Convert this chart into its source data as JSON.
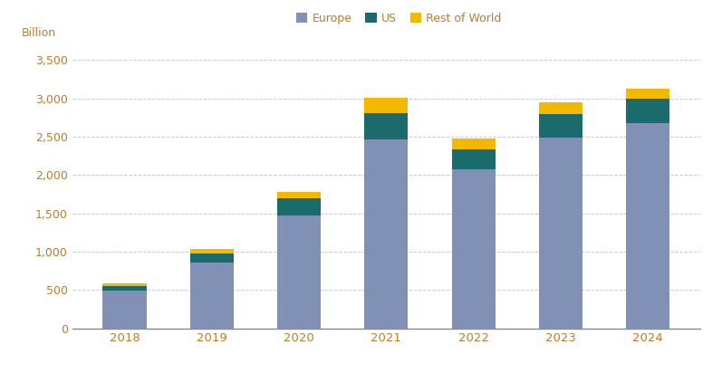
{
  "years": [
    "2018",
    "2019",
    "2020",
    "2021",
    "2022",
    "2023",
    "2024"
  ],
  "europe": [
    490,
    860,
    1470,
    2470,
    2070,
    2490,
    2680
  ],
  "us": [
    65,
    120,
    230,
    340,
    270,
    310,
    320
  ],
  "rest_of_world": [
    30,
    55,
    80,
    200,
    140,
    145,
    130
  ],
  "europe_color": "#8091b5",
  "us_color": "#1a6b6b",
  "row_color": "#f5b800",
  "background_color": "#ffffff",
  "ylabel": "Billion",
  "ylim": [
    0,
    3700
  ],
  "yticks": [
    0,
    500,
    1000,
    1500,
    2000,
    2500,
    3000,
    3500
  ],
  "ytick_labels": [
    "0",
    "500",
    "1,000",
    "1,500",
    "2,000",
    "2,500",
    "3,000",
    "3,500"
  ],
  "legend_labels": [
    "Europe",
    "US",
    "Rest of World"
  ],
  "grid_color": "#cccccc",
  "text_color": "#c47a2a",
  "bar_width": 0.5
}
